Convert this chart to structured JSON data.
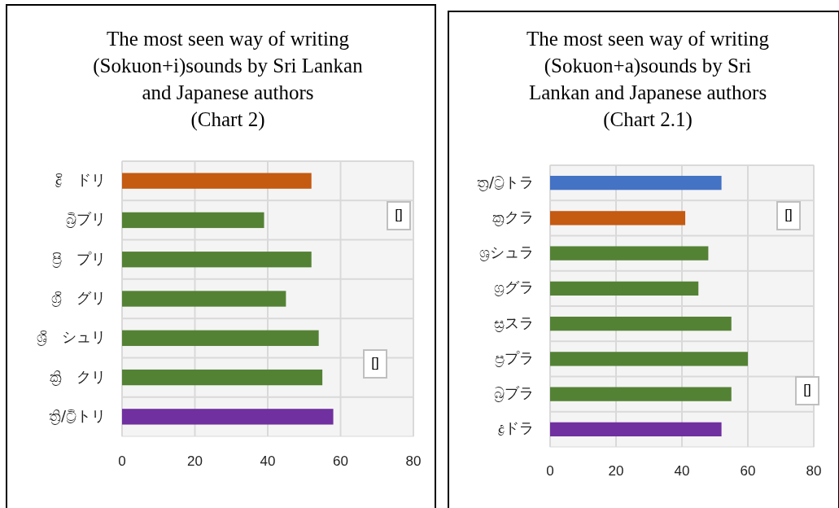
{
  "chart_data": [
    {
      "type": "bar",
      "orientation": "horizontal",
      "title": "The most seen way of writing (Sokuon+i)sounds by Sri Lankan and Japanese authors",
      "subtitle": "(Chart 2)",
      "categories": [
        "ද්‍රි　ドリ",
        "බ්‍රිブリ",
        "ප්‍රි　プリ",
        "ග්‍රි　グリ",
        "ශ්‍රි　シュリ",
        "ක්‍රි　クリ",
        "ත්‍රි/ට්‍රිトリ"
      ],
      "values": [
        52,
        39,
        52,
        45,
        54,
        55,
        58
      ],
      "colors": [
        "#c55a11",
        "#548235",
        "#548235",
        "#548235",
        "#548235",
        "#548235",
        "#7030a0"
      ],
      "xlim": [
        0,
        80
      ],
      "xticks": [
        0,
        20,
        40,
        60,
        80
      ],
      "grid": true,
      "annotations": [
        "[]",
        "[]"
      ]
    },
    {
      "type": "bar",
      "orientation": "horizontal",
      "title": "The most seen way of writing (Sokuon+a)sounds by Sri Lankan and Japanese authors",
      "subtitle": "(Chart 2.1)",
      "categories": [
        "ත්‍ර/ට්‍රトラ",
        "ක්‍රクラ",
        "ශ්‍රシュラ",
        "ග්‍රグラ",
        "ස්‍රスラ",
        "ප්‍රプラ",
        "බ්‍රブラ",
        "ද්‍රドラ"
      ],
      "values": [
        52,
        41,
        48,
        45,
        55,
        60,
        55,
        52
      ],
      "colors": [
        "#4472c4",
        "#c55a11",
        "#548235",
        "#548235",
        "#548235",
        "#548235",
        "#548235",
        "#7030a0"
      ],
      "xlim": [
        0,
        80
      ],
      "xticks": [
        0,
        20,
        40,
        60,
        80
      ],
      "grid": true,
      "annotations": [
        "[]",
        "[]"
      ]
    }
  ]
}
